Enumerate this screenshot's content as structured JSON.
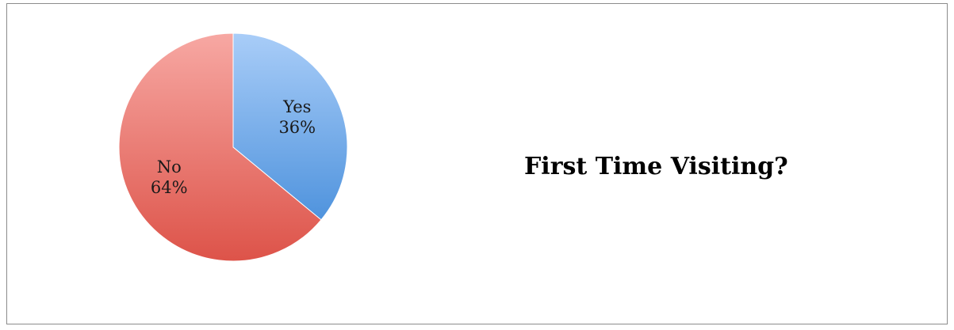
{
  "chart_data": {
    "type": "pie",
    "title": "First Time Visiting?",
    "categories": [
      "Yes",
      "No"
    ],
    "values": [
      36,
      64
    ],
    "labels": [
      "36%",
      "64%"
    ],
    "colors": [
      "#7fb1ec",
      "#ec7f76"
    ],
    "legend": "none"
  }
}
